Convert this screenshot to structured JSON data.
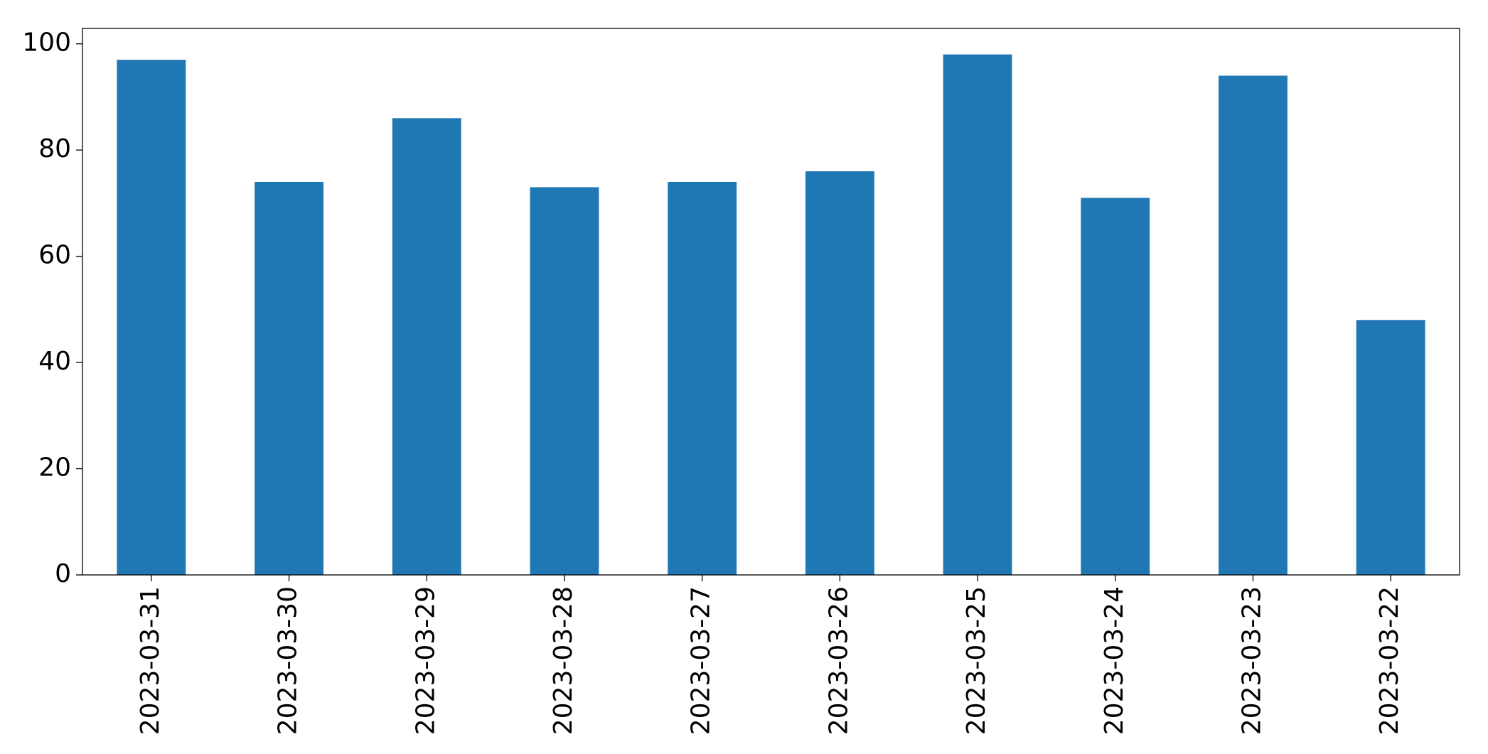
{
  "chart_data": {
    "type": "bar",
    "categories": [
      "2023-03-31",
      "2023-03-30",
      "2023-03-29",
      "2023-03-28",
      "2023-03-27",
      "2023-03-26",
      "2023-03-25",
      "2023-03-24",
      "2023-03-23",
      "2023-03-22"
    ],
    "values": [
      97,
      74,
      86,
      73,
      74,
      76,
      98,
      71,
      94,
      48
    ],
    "color": "#1f77b4",
    "ylim": [
      0,
      102.9
    ],
    "yticks": [
      0,
      20,
      40,
      60,
      80,
      100
    ],
    "grid": false
  }
}
